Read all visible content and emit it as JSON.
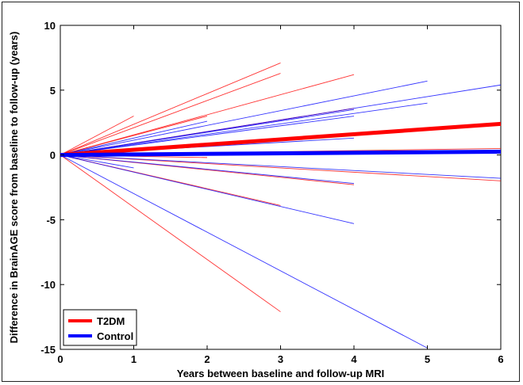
{
  "chart_data": {
    "type": "line",
    "xlabel": "Years between baseline and follow-up MRI",
    "ylabel": "Difference in BrainAGE score from baseline to follow-up (years)",
    "xlim": [
      0,
      6
    ],
    "ylim": [
      -15,
      10
    ],
    "x_ticks": [
      0,
      1,
      2,
      3,
      4,
      5,
      6
    ],
    "y_ticks": [
      -15,
      -10,
      -5,
      0,
      5,
      10
    ],
    "grid": false,
    "legend_position": "bottom-left",
    "series": [
      {
        "name": "T2DM",
        "color": "#ff0000",
        "mean_line": {
          "x": [
            0,
            6
          ],
          "y": [
            0,
            2.4
          ]
        },
        "individual_lines": [
          {
            "x": [
              0,
              1
            ],
            "y": [
              0,
              3.0
            ]
          },
          {
            "x": [
              0,
              3
            ],
            "y": [
              0,
              7.1
            ]
          },
          {
            "x": [
              0,
              3
            ],
            "y": [
              0,
              6.3
            ]
          },
          {
            "x": [
              0,
              4
            ],
            "y": [
              0,
              6.2
            ]
          },
          {
            "x": [
              0,
              2
            ],
            "y": [
              0,
              3.0
            ]
          },
          {
            "x": [
              0,
              4
            ],
            "y": [
              0,
              3.6
            ]
          },
          {
            "x": [
              0,
              2
            ],
            "y": [
              0,
              -0.2
            ]
          },
          {
            "x": [
              0,
              6
            ],
            "y": [
              0,
              0.5
            ]
          },
          {
            "x": [
              0,
              4
            ],
            "y": [
              0,
              -2.3
            ]
          },
          {
            "x": [
              0,
              6
            ],
            "y": [
              0,
              -2.0
            ]
          },
          {
            "x": [
              0,
              3
            ],
            "y": [
              0,
              -3.9
            ]
          },
          {
            "x": [
              0,
              3
            ],
            "y": [
              0,
              -12.1
            ]
          }
        ]
      },
      {
        "name": "Control",
        "color": "#0000ff",
        "mean_line": {
          "x": [
            0,
            6
          ],
          "y": [
            0,
            0.25
          ]
        },
        "individual_lines": [
          {
            "x": [
              0,
              5
            ],
            "y": [
              0,
              5.7
            ]
          },
          {
            "x": [
              0,
              6
            ],
            "y": [
              0,
              5.4
            ]
          },
          {
            "x": [
              0,
              5
            ],
            "y": [
              0,
              4.0
            ]
          },
          {
            "x": [
              0,
              4
            ],
            "y": [
              0,
              3.0
            ]
          },
          {
            "x": [
              0,
              2
            ],
            "y": [
              0,
              2.6
            ]
          },
          {
            "x": [
              0,
              4
            ],
            "y": [
              0,
              3.5
            ]
          },
          {
            "x": [
              0,
              4
            ],
            "y": [
              0,
              1.3
            ]
          },
          {
            "x": [
              0,
              6
            ],
            "y": [
              0,
              0.35
            ]
          },
          {
            "x": [
              0,
              1
            ],
            "y": [
              0,
              -1.0
            ]
          },
          {
            "x": [
              0,
              4
            ],
            "y": [
              0,
              -2.2
            ]
          },
          {
            "x": [
              0,
              6
            ],
            "y": [
              0,
              -1.8
            ]
          },
          {
            "x": [
              0,
              4
            ],
            "y": [
              0,
              -5.3
            ]
          },
          {
            "x": [
              0,
              5
            ],
            "y": [
              0,
              -14.9
            ]
          }
        ]
      }
    ]
  }
}
